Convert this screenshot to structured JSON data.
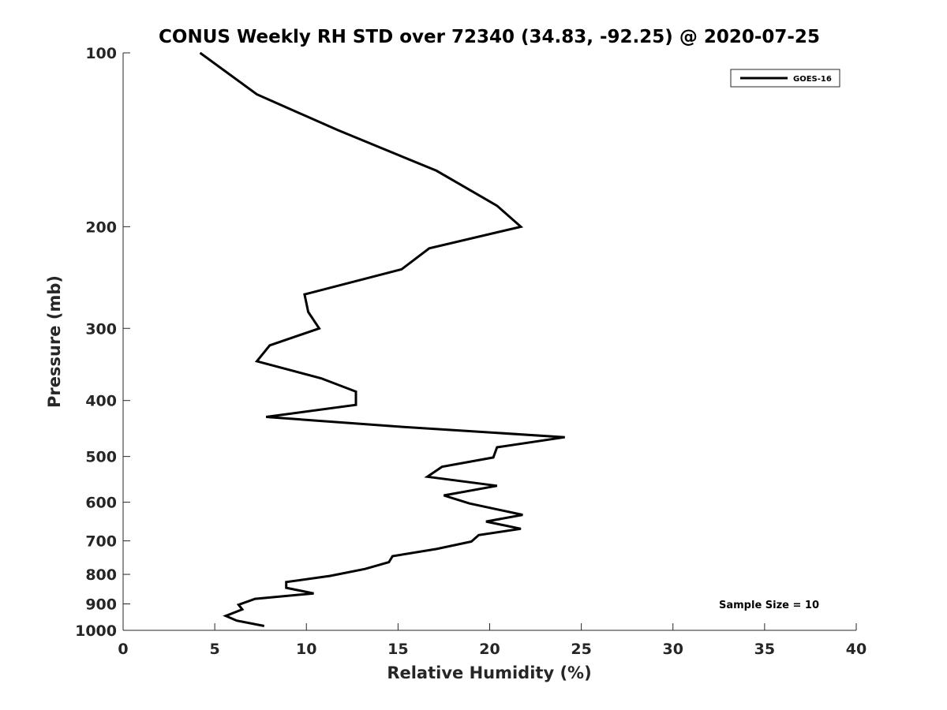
{
  "chart_data": {
    "type": "line",
    "title": "CONUS Weekly RH STD over 72340 (34.83, -92.25) @ 2020-07-25",
    "xlabel": "Relative Humidity (%)",
    "ylabel": "Pressure (mb)",
    "xlim": [
      0,
      40
    ],
    "ylim": [
      100,
      1000
    ],
    "y_scale": "log",
    "y_reversed": true,
    "grid": false,
    "x_ticks": [
      "0",
      "5",
      "10",
      "15",
      "20",
      "25",
      "30",
      "35",
      "40"
    ],
    "y_ticks": [
      "100",
      "200",
      "300",
      "400",
      "500",
      "600",
      "700",
      "800",
      "900",
      "1000"
    ],
    "legend": {
      "position": "top-right",
      "entries": [
        "GOES-16"
      ]
    },
    "annotation": "Sample Size = 10",
    "series": [
      {
        "name": "GOES-16",
        "color": "#000000",
        "points": [
          [
            4.2,
            100
          ],
          [
            7.3,
            118
          ],
          [
            11.7,
            136
          ],
          [
            17.1,
            160
          ],
          [
            20.4,
            184
          ],
          [
            21.7,
            200
          ],
          [
            16.7,
            218
          ],
          [
            15.2,
            237
          ],
          [
            9.9,
            262
          ],
          [
            10.1,
            281
          ],
          [
            10.7,
            300
          ],
          [
            8.0,
            321
          ],
          [
            7.3,
            342
          ],
          [
            10.8,
            366
          ],
          [
            12.7,
            386
          ],
          [
            12.7,
            407
          ],
          [
            7.8,
            427
          ],
          [
            15.1,
            444
          ],
          [
            24.1,
            463
          ],
          [
            20.4,
            482
          ],
          [
            20.2,
            502
          ],
          [
            17.4,
            521
          ],
          [
            16.6,
            542
          ],
          [
            20.4,
            562
          ],
          [
            17.5,
            584
          ],
          [
            18.9,
            603
          ],
          [
            21.8,
            631
          ],
          [
            19.8,
            648
          ],
          [
            21.7,
            667
          ],
          [
            19.4,
            684
          ],
          [
            19.0,
            702
          ],
          [
            17.1,
            723
          ],
          [
            14.7,
            744
          ],
          [
            14.5,
            762
          ],
          [
            13.2,
            783
          ],
          [
            11.3,
            805
          ],
          [
            8.9,
            825
          ],
          [
            8.9,
            844
          ],
          [
            10.4,
            863
          ],
          [
            7.2,
            882
          ],
          [
            6.3,
            903
          ],
          [
            6.5,
            920
          ],
          [
            5.6,
            944
          ],
          [
            6.2,
            962
          ],
          [
            7.7,
            983
          ]
        ]
      }
    ]
  }
}
